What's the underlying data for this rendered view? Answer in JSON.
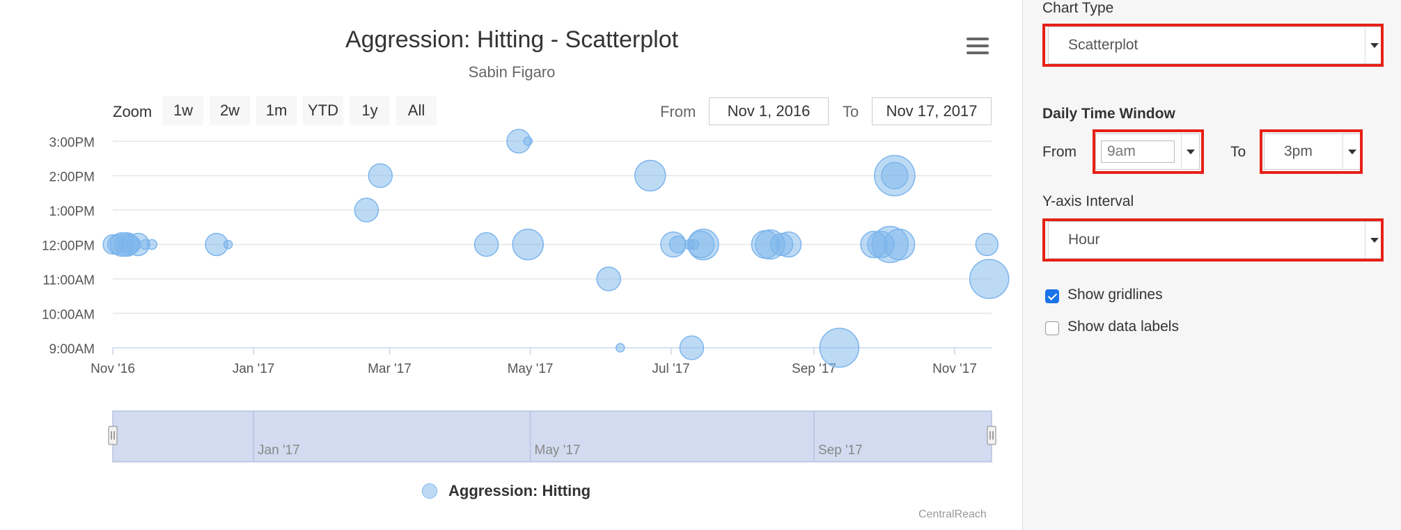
{
  "chart": {
    "title": "Aggression: Hitting - Scatterplot",
    "subtitle": "Sabin Figaro",
    "zoom_label": "Zoom",
    "zoom_buttons": [
      "1w",
      "2w",
      "1m",
      "YTD",
      "1y",
      "All"
    ],
    "range_from_label": "From",
    "range_from_value": "Nov 1, 2016",
    "range_to_label": "To",
    "range_to_value": "Nov 17, 2017",
    "credit": "CentralReach",
    "legend": "Aggression: Hitting",
    "series_color": "#7cb5ec",
    "navigator_color": "#d2dbef"
  },
  "chart_data": {
    "type": "scatter",
    "title": "Aggression: Hitting - Scatterplot",
    "subtitle": "Sabin Figaro",
    "xlabel": "",
    "ylabel": "",
    "xlim": [
      "2016-11-01",
      "2017-11-17"
    ],
    "ylim": [
      "9:00AM",
      "3:00PM"
    ],
    "x_tick_labels": [
      "Nov '16",
      "Jan '17",
      "Mar '17",
      "May '17",
      "Jul '17",
      "Sep '17",
      "Nov '17"
    ],
    "y_tick_labels": [
      "3:00PM",
      "2:00PM",
      "1:00PM",
      "12:00PM",
      "11:00AM",
      "10:00AM",
      "9:00AM"
    ],
    "navigator_labels": [
      "Jan '17",
      "May '17",
      "Sep '17"
    ],
    "grid": true,
    "legend_position": "bottom-center",
    "series": [
      {
        "name": "Aggression: Hitting",
        "points": [
          {
            "date": "2016-11-01",
            "hour": 12,
            "r": 14
          },
          {
            "date": "2016-11-03",
            "hour": 12,
            "r": 14
          },
          {
            "date": "2016-11-05",
            "hour": 12,
            "r": 17
          },
          {
            "date": "2016-11-07",
            "hour": 12,
            "r": 17
          },
          {
            "date": "2016-11-08",
            "hour": 12,
            "r": 15
          },
          {
            "date": "2016-11-09",
            "hour": 12,
            "r": 13
          },
          {
            "date": "2016-11-12",
            "hour": 12,
            "r": 16
          },
          {
            "date": "2016-11-15",
            "hour": 12,
            "r": 7
          },
          {
            "date": "2016-11-18",
            "hour": 12,
            "r": 7
          },
          {
            "date": "2016-12-16",
            "hour": 12,
            "r": 16
          },
          {
            "date": "2016-12-21",
            "hour": 12,
            "r": 6
          },
          {
            "date": "2017-02-19",
            "hour": 13,
            "r": 17
          },
          {
            "date": "2017-02-25",
            "hour": 14,
            "r": 17
          },
          {
            "date": "2017-04-12",
            "hour": 12,
            "r": 17
          },
          {
            "date": "2017-04-26",
            "hour": 15,
            "r": 17
          },
          {
            "date": "2017-04-30",
            "hour": 15,
            "r": 6
          },
          {
            "date": "2017-04-30",
            "hour": 12,
            "r": 22
          },
          {
            "date": "2017-06-04",
            "hour": 11,
            "r": 17
          },
          {
            "date": "2017-06-09",
            "hour": 9,
            "r": 6
          },
          {
            "date": "2017-06-22",
            "hour": 14,
            "r": 22
          },
          {
            "date": "2017-07-02",
            "hour": 12,
            "r": 18
          },
          {
            "date": "2017-07-04",
            "hour": 12,
            "r": 12
          },
          {
            "date": "2017-07-09",
            "hour": 12,
            "r": 7
          },
          {
            "date": "2017-07-10",
            "hour": 9,
            "r": 17
          },
          {
            "date": "2017-07-11",
            "hour": 12,
            "r": 7
          },
          {
            "date": "2017-07-14",
            "hour": 12,
            "r": 19
          },
          {
            "date": "2017-07-15",
            "hour": 12,
            "r": 22
          },
          {
            "date": "2017-08-11",
            "hour": 12,
            "r": 20
          },
          {
            "date": "2017-08-13",
            "hour": 12,
            "r": 21
          },
          {
            "date": "2017-08-18",
            "hour": 12,
            "r": 16
          },
          {
            "date": "2017-08-21",
            "hour": 12,
            "r": 18
          },
          {
            "date": "2017-09-12",
            "hour": 9,
            "r": 28
          },
          {
            "date": "2017-09-27",
            "hour": 12,
            "r": 19
          },
          {
            "date": "2017-09-30",
            "hour": 12,
            "r": 19
          },
          {
            "date": "2017-10-04",
            "hour": 12,
            "r": 26
          },
          {
            "date": "2017-10-06",
            "hour": 14,
            "r": 29
          },
          {
            "date": "2017-10-06",
            "hour": 14,
            "r": 19
          },
          {
            "date": "2017-10-08",
            "hour": 12,
            "r": 22
          },
          {
            "date": "2017-11-15",
            "hour": 12,
            "r": 16
          },
          {
            "date": "2017-11-16",
            "hour": 11,
            "r": 28
          }
        ]
      }
    ]
  },
  "panel": {
    "chart_type_label": "Chart Type",
    "chart_type_value": "Scatterplot",
    "daily_window_heading": "Daily Time Window",
    "from_label": "From",
    "from_value": "9am",
    "to_label": "To",
    "to_value": "3pm",
    "y_interval_label": "Y-axis Interval",
    "y_interval_value": "Hour",
    "show_gridlines_label": "Show gridlines",
    "show_gridlines_checked": true,
    "show_data_labels_label": "Show data labels",
    "show_data_labels_checked": false,
    "highlight_color": "#e62117"
  }
}
